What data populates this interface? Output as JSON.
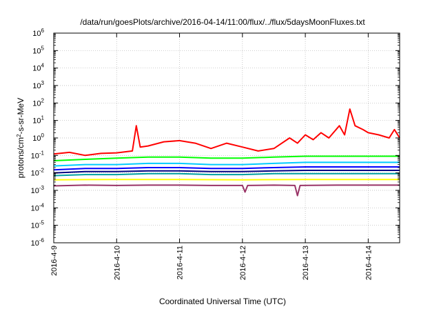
{
  "chart_data": {
    "type": "line",
    "title": "/data/run/goesPlots/archive/2016-04-14/11:00/flux/../flux/5daysMoonFluxes.txt",
    "xlabel": "Coordinated Universal Time (UTC)",
    "ylabel": {
      "pre": "protons/cm",
      "sup": "2",
      "post": "-s-sr-MeV"
    },
    "yscale": "log",
    "ylim_exp": [
      -6,
      6
    ],
    "y_tick_base": "10",
    "y_tick_exponents": [
      "-6",
      "-5",
      "-4",
      "-3",
      "-2",
      "-1",
      "0",
      "1",
      "2",
      "3",
      "4",
      "5",
      "6"
    ],
    "xlim": [
      "2016-04-09T00:00",
      "2016-04-14T12:00"
    ],
    "x_ticks": [
      "2016-4-9",
      "2016-4-10",
      "2016-4-11",
      "2016-4-12",
      "2016-4-13",
      "2016-4-14"
    ],
    "grid": true,
    "legend": "none",
    "series": [
      {
        "color": "#ff0000",
        "points": [
          [
            "2016-04-09T00:00",
            0.12
          ],
          [
            "2016-04-09T06:00",
            0.15
          ],
          [
            "2016-04-09T12:00",
            0.1
          ],
          [
            "2016-04-09T18:00",
            0.13
          ],
          [
            "2016-04-10T00:00",
            0.14
          ],
          [
            "2016-04-10T06:00",
            0.18
          ],
          [
            "2016-04-10T07:30",
            5.0
          ],
          [
            "2016-04-10T09:00",
            0.3
          ],
          [
            "2016-04-10T12:00",
            0.35
          ],
          [
            "2016-04-10T18:00",
            0.6
          ],
          [
            "2016-04-11T00:00",
            0.7
          ],
          [
            "2016-04-11T06:00",
            0.5
          ],
          [
            "2016-04-11T12:00",
            0.25
          ],
          [
            "2016-04-11T18:00",
            0.5
          ],
          [
            "2016-04-12T00:00",
            0.3
          ],
          [
            "2016-04-12T06:00",
            0.18
          ],
          [
            "2016-04-12T12:00",
            0.25
          ],
          [
            "2016-04-12T18:00",
            1.0
          ],
          [
            "2016-04-12T21:00",
            0.5
          ],
          [
            "2016-04-13T00:00",
            1.5
          ],
          [
            "2016-04-13T03:00",
            0.8
          ],
          [
            "2016-04-13T06:00",
            2.0
          ],
          [
            "2016-04-13T09:00",
            1.0
          ],
          [
            "2016-04-13T13:00",
            5.0
          ],
          [
            "2016-04-13T15:00",
            1.5
          ],
          [
            "2016-04-13T17:00",
            45.0
          ],
          [
            "2016-04-13T19:00",
            5.0
          ],
          [
            "2016-04-13T22:00",
            3.0
          ],
          [
            "2016-04-14T00:00",
            2.0
          ],
          [
            "2016-04-14T04:00",
            1.5
          ],
          [
            "2016-04-14T08:00",
            1.0
          ],
          [
            "2016-04-14T10:00",
            3.0
          ],
          [
            "2016-04-14T12:00",
            1.0
          ]
        ]
      },
      {
        "color": "#00ff00",
        "points": [
          [
            "2016-04-09T00:00",
            0.05
          ],
          [
            "2016-04-09T12:00",
            0.06
          ],
          [
            "2016-04-10T00:00",
            0.07
          ],
          [
            "2016-04-10T12:00",
            0.08
          ],
          [
            "2016-04-11T00:00",
            0.08
          ],
          [
            "2016-04-11T12:00",
            0.07
          ],
          [
            "2016-04-12T00:00",
            0.07
          ],
          [
            "2016-04-12T12:00",
            0.08
          ],
          [
            "2016-04-13T00:00",
            0.09
          ],
          [
            "2016-04-13T12:00",
            0.09
          ],
          [
            "2016-04-14T00:00",
            0.09
          ],
          [
            "2016-04-14T12:00",
            0.09
          ]
        ]
      },
      {
        "color": "#00ccff",
        "points": [
          [
            "2016-04-09T00:00",
            0.025
          ],
          [
            "2016-04-09T12:00",
            0.03
          ],
          [
            "2016-04-10T00:00",
            0.03
          ],
          [
            "2016-04-10T12:00",
            0.035
          ],
          [
            "2016-04-11T00:00",
            0.035
          ],
          [
            "2016-04-11T12:00",
            0.03
          ],
          [
            "2016-04-12T00:00",
            0.03
          ],
          [
            "2016-04-12T12:00",
            0.035
          ],
          [
            "2016-04-13T00:00",
            0.04
          ],
          [
            "2016-04-13T12:00",
            0.04
          ],
          [
            "2016-04-14T00:00",
            0.04
          ],
          [
            "2016-04-14T12:00",
            0.04
          ]
        ]
      },
      {
        "color": "#0000ff",
        "points": [
          [
            "2016-04-09T00:00",
            0.015
          ],
          [
            "2016-04-09T12:00",
            0.018
          ],
          [
            "2016-04-10T00:00",
            0.018
          ],
          [
            "2016-04-10T12:00",
            0.02
          ],
          [
            "2016-04-11T00:00",
            0.02
          ],
          [
            "2016-04-11T12:00",
            0.018
          ],
          [
            "2016-04-12T00:00",
            0.018
          ],
          [
            "2016-04-12T12:00",
            0.02
          ],
          [
            "2016-04-13T00:00",
            0.022
          ],
          [
            "2016-04-13T12:00",
            0.022
          ],
          [
            "2016-04-14T00:00",
            0.022
          ],
          [
            "2016-04-14T12:00",
            0.022
          ]
        ]
      },
      {
        "color": "#000080",
        "points": [
          [
            "2016-04-09T00:00",
            0.01
          ],
          [
            "2016-04-09T12:00",
            0.012
          ],
          [
            "2016-04-10T00:00",
            0.012
          ],
          [
            "2016-04-10T12:00",
            0.013
          ],
          [
            "2016-04-11T00:00",
            0.013
          ],
          [
            "2016-04-11T12:00",
            0.012
          ],
          [
            "2016-04-12T00:00",
            0.012
          ],
          [
            "2016-04-12T12:00",
            0.013
          ],
          [
            "2016-04-13T00:00",
            0.014
          ],
          [
            "2016-04-13T12:00",
            0.014
          ],
          [
            "2016-04-14T00:00",
            0.014
          ],
          [
            "2016-04-14T12:00",
            0.014
          ]
        ]
      },
      {
        "color": "#00a0a0",
        "points": [
          [
            "2016-04-09T00:00",
            0.007
          ],
          [
            "2016-04-09T12:00",
            0.008
          ],
          [
            "2016-04-10T00:00",
            0.008
          ],
          [
            "2016-04-10T12:00",
            0.009
          ],
          [
            "2016-04-11T00:00",
            0.009
          ],
          [
            "2016-04-11T12:00",
            0.008
          ],
          [
            "2016-04-12T00:00",
            0.008
          ],
          [
            "2016-04-12T12:00",
            0.009
          ],
          [
            "2016-04-13T00:00",
            0.009
          ],
          [
            "2016-04-13T12:00",
            0.009
          ],
          [
            "2016-04-14T00:00",
            0.009
          ],
          [
            "2016-04-14T12:00",
            0.009
          ]
        ]
      },
      {
        "color": "#ffff00",
        "points": [
          [
            "2016-04-09T00:00",
            0.004
          ],
          [
            "2016-04-10T00:00",
            0.0042
          ],
          [
            "2016-04-11T00:00",
            0.0042
          ],
          [
            "2016-04-12T00:00",
            0.004
          ],
          [
            "2016-04-13T00:00",
            0.0042
          ],
          [
            "2016-04-14T00:00",
            0.0042
          ],
          [
            "2016-04-14T12:00",
            0.0042
          ]
        ]
      },
      {
        "color": "#993366",
        "points": [
          [
            "2016-04-09T00:00",
            0.0018
          ],
          [
            "2016-04-09T12:00",
            0.002
          ],
          [
            "2016-04-10T00:00",
            0.0019
          ],
          [
            "2016-04-10T12:00",
            0.002
          ],
          [
            "2016-04-11T00:00",
            0.002
          ],
          [
            "2016-04-11T12:00",
            0.0019
          ],
          [
            "2016-04-12T00:00",
            0.0019
          ],
          [
            "2016-04-12T01:00",
            0.0008
          ],
          [
            "2016-04-12T02:00",
            0.0019
          ],
          [
            "2016-04-12T12:00",
            0.002
          ],
          [
            "2016-04-12T20:00",
            0.0019
          ],
          [
            "2016-04-12T21:00",
            0.0005
          ],
          [
            "2016-04-12T22:00",
            0.0019
          ],
          [
            "2016-04-13T12:00",
            0.002
          ],
          [
            "2016-04-14T00:00",
            0.002
          ],
          [
            "2016-04-14T12:00",
            0.002
          ]
        ]
      }
    ]
  }
}
